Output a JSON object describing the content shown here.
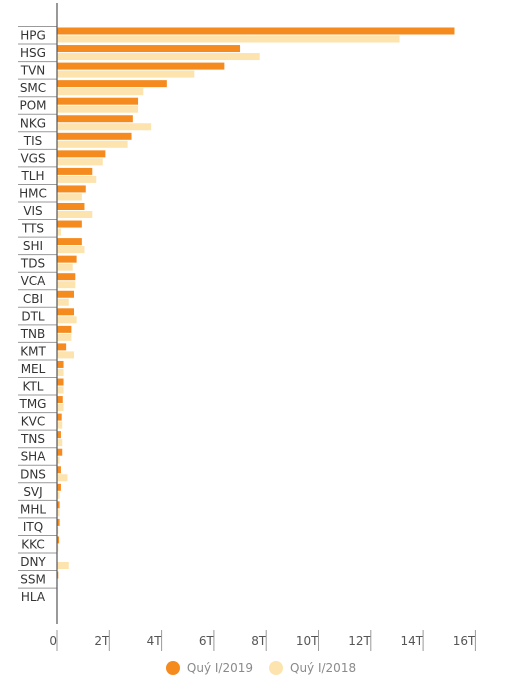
{
  "chart_data": {
    "type": "bar",
    "orientation": "horizontal",
    "categories": [
      "HPG",
      "HSG",
      "TVN",
      "SMC",
      "POM",
      "NKG",
      "TIS",
      "VGS",
      "TLH",
      "HMC",
      "VIS",
      "TTS",
      "SHI",
      "TDS",
      "VCA",
      "CBI",
      "DTL",
      "TNB",
      "KMT",
      "MEL",
      "KTL",
      "TMG",
      "KVC",
      "TNS",
      "SHA",
      "DNS",
      "SVJ",
      "MHL",
      "ITQ",
      "KKC",
      "DNY",
      "SSM",
      "HLA"
    ],
    "series": [
      {
        "name": "Quý I/2019",
        "color": "#f58a1f",
        "values": [
          15.2,
          7.0,
          6.4,
          4.2,
          3.1,
          2.9,
          2.85,
          1.85,
          1.35,
          1.1,
          1.05,
          0.95,
          0.95,
          0.75,
          0.7,
          0.65,
          0.65,
          0.55,
          0.35,
          0.25,
          0.25,
          0.22,
          0.18,
          0.15,
          0.2,
          0.15,
          0.15,
          0.1,
          0.1,
          0.08,
          0.0,
          0.05,
          0.0
        ]
      },
      {
        "name": "Quý I/2018",
        "color": "#fde3ad",
        "values": [
          13.1,
          7.75,
          5.25,
          3.3,
          3.1,
          3.6,
          2.7,
          1.75,
          1.5,
          0.95,
          1.35,
          0.15,
          1.05,
          0.6,
          0.7,
          0.45,
          0.75,
          0.55,
          0.65,
          0.25,
          0.25,
          0.25,
          0.2,
          0.2,
          0.1,
          0.4,
          0.1,
          0.1,
          0.05,
          0.05,
          0.45,
          0.0,
          0.0
        ]
      }
    ],
    "x_ticks": [
      "0",
      "2T",
      "4T",
      "6T",
      "8T",
      "10T",
      "12T",
      "14T",
      "16T"
    ],
    "xlim": [
      0,
      16
    ],
    "grid": false,
    "legend_placement": "bottom-center"
  },
  "legend": {
    "label_2019": "Quý I/2019",
    "label_2018": "Quý I/2018",
    "color_2019": "#f58a1f",
    "color_2018": "#fde3ad"
  }
}
